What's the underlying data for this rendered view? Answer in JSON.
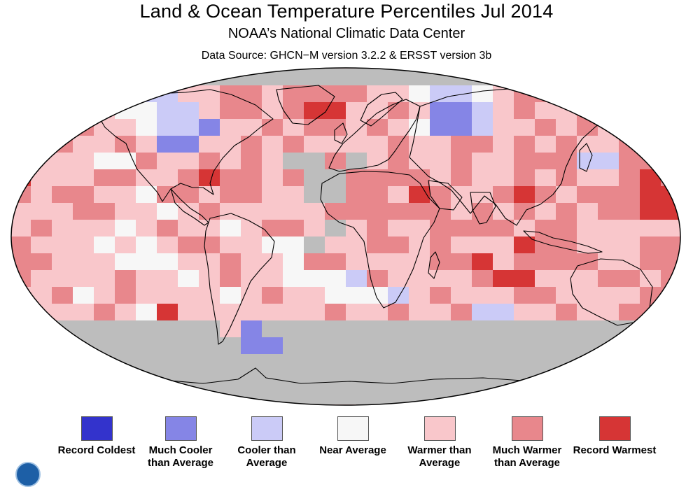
{
  "header": {
    "title": "Land & Ocean Temperature Percentiles Jul 2014",
    "subtitle": "NOAA’s National Climatic Data Center",
    "source": "Data Source: GHCN−M version 3.2.2 & ERSST version 3b"
  },
  "map": {
    "projection": "robinson",
    "no_data_color": "#bdbdbd",
    "coastline_color": "#000000"
  },
  "legend": [
    {
      "label": "Record Coldest",
      "color": "#3333cc"
    },
    {
      "label": "Much Cooler than Average",
      "color": "#8585e6"
    },
    {
      "label": "Cooler than Average",
      "color": "#cbcbf7"
    },
    {
      "label": "Near Average",
      "color": "#f7f7f7"
    },
    {
      "label": "Warmer than Average",
      "color": "#f9c7cb"
    },
    {
      "label": "Much Warmer than Average",
      "color": "#e8878c"
    },
    {
      "label": "Record Warmest",
      "color": "#d63535"
    }
  ]
}
